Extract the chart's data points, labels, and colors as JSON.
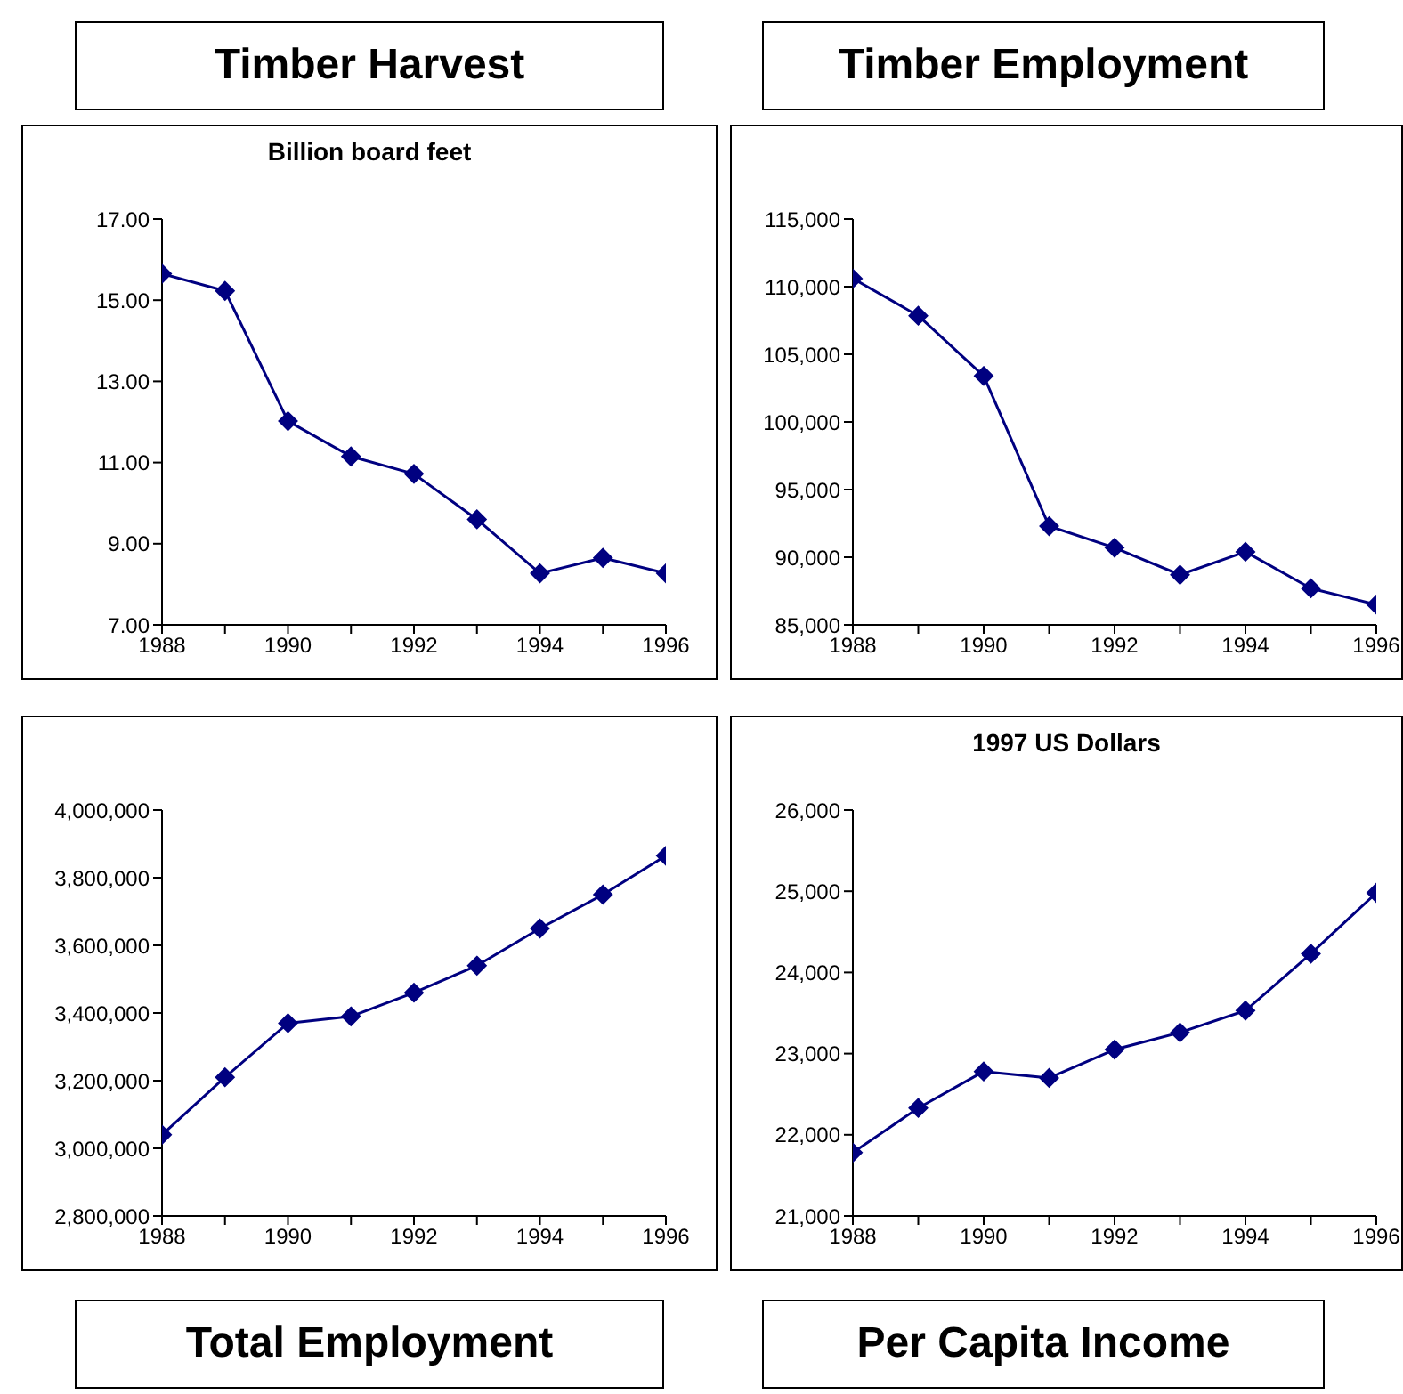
{
  "chart_data": [
    {
      "type": "line",
      "title": "Timber Harvest",
      "subtitle": "Billion board feet",
      "x": [
        1988,
        1989,
        1990,
        1991,
        1992,
        1993,
        1994,
        1995,
        1996
      ],
      "xlim": [
        1988,
        1996
      ],
      "xticks": [
        1988,
        {
          "value": 1989,
          "label": null
        },
        1990,
        {
          "value": 1991,
          "label": null
        },
        1992,
        {
          "value": 1993,
          "label": null
        },
        1994,
        {
          "value": 1995,
          "label": null
        },
        1996
      ],
      "ylim": [
        7,
        17
      ],
      "yticks": [
        {
          "value": 7,
          "label": "7.00"
        },
        {
          "value": 9,
          "label": "9.00"
        },
        {
          "value": 11,
          "label": "11.00"
        },
        {
          "value": 13,
          "label": "13.00"
        },
        {
          "value": 15,
          "label": "15.00"
        },
        {
          "value": 17,
          "label": "17.00"
        }
      ],
      "series": [
        {
          "color": "#000080",
          "values": [
            15.65,
            15.23,
            12.02,
            11.15,
            10.72,
            9.6,
            8.27,
            8.65,
            8.27
          ]
        }
      ],
      "marker": "diamond",
      "line_style": "solid",
      "grid": false,
      "legend": false
    },
    {
      "type": "line",
      "title": "Timber Employment",
      "x": [
        1988,
        1989,
        1990,
        1991,
        1992,
        1993,
        1994,
        1995,
        1996
      ],
      "xlim": [
        1988,
        1996
      ],
      "xticks": [
        1988,
        {
          "value": 1989,
          "label": null
        },
        1990,
        {
          "value": 1991,
          "label": null
        },
        1992,
        {
          "value": 1993,
          "label": null
        },
        1994,
        {
          "value": 1995,
          "label": null
        },
        1996
      ],
      "ylim": [
        85000,
        115000
      ],
      "yticks": [
        {
          "value": 85000,
          "label": "85,000"
        },
        {
          "value": 90000,
          "label": "90,000"
        },
        {
          "value": 95000,
          "label": "95,000"
        },
        {
          "value": 100000,
          "label": "100,000"
        },
        {
          "value": 105000,
          "label": "105,000"
        },
        {
          "value": 110000,
          "label": "110,000"
        },
        {
          "value": 115000,
          "label": "115,000"
        }
      ],
      "series": [
        {
          "color": "#000080",
          "values": [
            110600,
            107850,
            103400,
            92300,
            90700,
            88700,
            90400,
            87700,
            86500
          ]
        }
      ],
      "marker": "diamond",
      "line_style": "solid",
      "grid": false,
      "legend": false
    },
    {
      "type": "line",
      "title": "Total Employment",
      "x": [
        1988,
        1989,
        1990,
        1991,
        1992,
        1993,
        1994,
        1995,
        1996
      ],
      "xlim": [
        1988,
        1996
      ],
      "xticks": [
        1988,
        {
          "value": 1989,
          "label": null
        },
        1990,
        {
          "value": 1991,
          "label": null
        },
        1992,
        {
          "value": 1993,
          "label": null
        },
        1994,
        {
          "value": 1995,
          "label": null
        },
        1996
      ],
      "ylim": [
        2800000,
        4000000
      ],
      "yticks": [
        {
          "value": 2800000,
          "label": "2,800,000"
        },
        {
          "value": 3000000,
          "label": "3,000,000"
        },
        {
          "value": 3200000,
          "label": "3,200,000"
        },
        {
          "value": 3400000,
          "label": "3,400,000"
        },
        {
          "value": 3600000,
          "label": "3,600,000"
        },
        {
          "value": 3800000,
          "label": "3,800,000"
        },
        {
          "value": 4000000,
          "label": "4,000,000"
        }
      ],
      "series": [
        {
          "color": "#000080",
          "values": [
            3040000,
            3210000,
            3370000,
            3390000,
            3460000,
            3540000,
            3650000,
            3750000,
            3865000
          ]
        }
      ],
      "marker": "diamond",
      "line_style": "solid",
      "grid": false,
      "legend": false
    },
    {
      "type": "line",
      "title": "Per Capita Income",
      "subtitle": "1997 US Dollars",
      "x": [
        1988,
        1989,
        1990,
        1991,
        1992,
        1993,
        1994,
        1995,
        1996
      ],
      "xlim": [
        1988,
        1996
      ],
      "xticks": [
        1988,
        {
          "value": 1989,
          "label": null
        },
        1990,
        {
          "value": 1991,
          "label": null
        },
        1992,
        {
          "value": 1993,
          "label": null
        },
        1994,
        {
          "value": 1995,
          "label": null
        },
        1996
      ],
      "ylim": [
        21000,
        26000
      ],
      "yticks": [
        {
          "value": 21000,
          "label": "21,000"
        },
        {
          "value": 22000,
          "label": "22,000"
        },
        {
          "value": 23000,
          "label": "23,000"
        },
        {
          "value": 24000,
          "label": "24,000"
        },
        {
          "value": 25000,
          "label": "25,000"
        },
        {
          "value": 26000,
          "label": "26,000"
        }
      ],
      "series": [
        {
          "color": "#000080",
          "values": [
            21780,
            22330,
            22780,
            22700,
            23050,
            23260,
            23530,
            24230,
            24980
          ]
        }
      ],
      "marker": "diamond",
      "line_style": "solid",
      "grid": false,
      "legend": false
    }
  ]
}
